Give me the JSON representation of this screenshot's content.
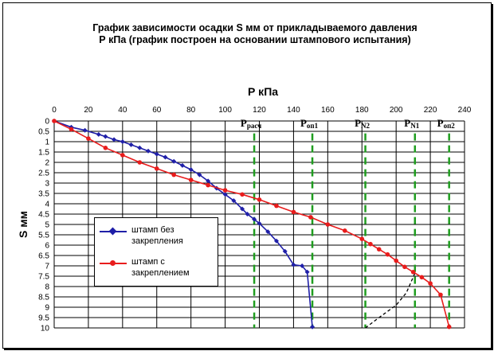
{
  "title": {
    "line1": "График зависимости осадки S мм от прикладываемого давления",
    "line2": "Р кПа (график построен на основании штампового испытания)"
  },
  "chart_data": {
    "type": "line",
    "xlabel": "Р кПа",
    "ylabel": "S мм",
    "xlim": [
      0,
      240
    ],
    "ylim": [
      0,
      10
    ],
    "x_axis_position": "top",
    "y_inverted": true,
    "x_ticks": [
      "0",
      "20",
      "40",
      "60",
      "80",
      "100",
      "120",
      "140",
      "160",
      "180",
      "200",
      "220",
      "240"
    ],
    "y_ticks": [
      "0",
      "0.5",
      "1",
      "1.5",
      "2",
      "2.5",
      "3",
      "3.5",
      "4",
      "4.5",
      "5",
      "5.5",
      "6",
      "6.5",
      "7",
      "7.5",
      "8",
      "8.5",
      "9",
      "9.5",
      "10"
    ],
    "grid": true,
    "legend_placement": "bottom-left",
    "series": [
      {
        "name": "штамп без закрепления",
        "color": "#1f1fa8",
        "marker": "diamond",
        "x": [
          0,
          10,
          18,
          26,
          30,
          35,
          40,
          45,
          50,
          55,
          60,
          65,
          70,
          75,
          80,
          85,
          90,
          95,
          100,
          105,
          110,
          113,
          117,
          120,
          125,
          130,
          135,
          140,
          145,
          148,
          151
        ],
        "y": [
          0,
          0.3,
          0.45,
          0.65,
          0.75,
          0.9,
          1.0,
          1.15,
          1.3,
          1.45,
          1.6,
          1.75,
          1.95,
          2.15,
          2.35,
          2.6,
          2.9,
          3.25,
          3.55,
          3.85,
          4.25,
          4.5,
          4.75,
          4.95,
          5.35,
          5.8,
          6.3,
          6.95,
          7.0,
          7.3,
          9.95
        ]
      },
      {
        "name": "штамп с закреплением",
        "color": "#e81c1c",
        "marker": "circle",
        "x": [
          0,
          10,
          20,
          30,
          40,
          50,
          60,
          70,
          80,
          90,
          100,
          110,
          120,
          130,
          140,
          150,
          160,
          170,
          180,
          185,
          190,
          195,
          200,
          205,
          210,
          215,
          220,
          226,
          231
        ],
        "y": [
          0,
          0.4,
          0.85,
          1.3,
          1.65,
          2.0,
          2.3,
          2.6,
          2.85,
          3.1,
          3.35,
          3.55,
          3.8,
          4.1,
          4.4,
          4.65,
          5.0,
          5.3,
          5.7,
          5.95,
          6.2,
          6.45,
          6.75,
          7.05,
          7.3,
          7.55,
          7.85,
          8.4,
          9.95
        ]
      }
    ],
    "annotations": [
      {
        "label": "P",
        "sub": "расч",
        "x": 117
      },
      {
        "label": "P",
        "sub": "оп1",
        "x": 151
      },
      {
        "label": "P",
        "sub": "N2",
        "x": 182
      },
      {
        "label": "P",
        "sub": "N1",
        "x": 211
      },
      {
        "label": "P",
        "sub": "оп2",
        "x": 231
      }
    ],
    "vertical_markers": {
      "color": "#1f9d1f",
      "x": [
        117,
        151,
        182,
        211,
        231
      ],
      "y_range": [
        0.6,
        10
      ]
    },
    "dashed_curve": {
      "color": "#000000",
      "x": [
        182,
        190,
        200,
        206,
        211
      ],
      "y": [
        10,
        9.5,
        8.9,
        8.3,
        7.35
      ]
    }
  }
}
